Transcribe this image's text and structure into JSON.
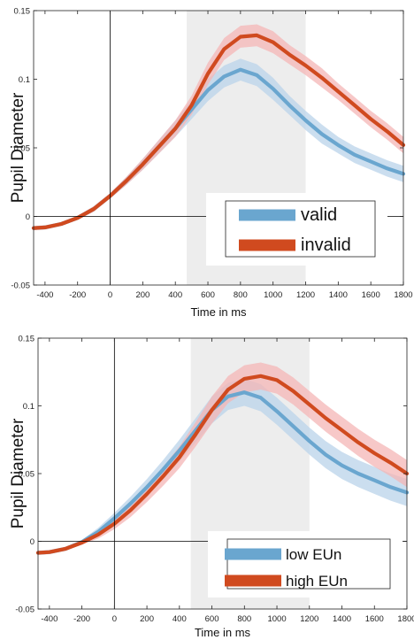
{
  "chart_data": [
    {
      "type": "line",
      "xlabel": "Time in ms",
      "ylabel": "Pupil Diameter",
      "xlim": [
        -470,
        1800
      ],
      "ylim": [
        -0.05,
        0.15
      ],
      "xticks": [
        "-400",
        "-200",
        "0",
        "200",
        "400",
        "600",
        "800",
        "1000",
        "1200",
        "1400",
        "1600",
        "1800"
      ],
      "yticks": [
        "-0.05",
        "0",
        "0.05",
        "0.1",
        "0.15"
      ],
      "highlight_window": [
        470,
        1200
      ],
      "legend_location": "bottom-right",
      "series": [
        {
          "name": "valid",
          "color": "#6aa6cf",
          "band_color": "#b9d3ea",
          "x": [
            -470,
            -400,
            -300,
            -200,
            -100,
            0,
            100,
            200,
            300,
            400,
            500,
            600,
            700,
            800,
            900,
            1000,
            1100,
            1200,
            1300,
            1400,
            1500,
            1600,
            1700,
            1800
          ],
          "y": [
            -0.0085,
            -0.008,
            -0.0055,
            -0.001,
            0.0055,
            0.015,
            0.026,
            0.038,
            0.051,
            0.064,
            0.078,
            0.092,
            0.102,
            0.107,
            0.103,
            0.093,
            0.081,
            0.07,
            0.06,
            0.052,
            0.045,
            0.04,
            0.035,
            0.031
          ],
          "ci": [
            0.0015,
            0.0015,
            0.0015,
            0.0015,
            0.002,
            0.002,
            0.003,
            0.004,
            0.005,
            0.006,
            0.007,
            0.008,
            0.008,
            0.008,
            0.008,
            0.008,
            0.007,
            0.007,
            0.007,
            0.006,
            0.006,
            0.006,
            0.006,
            0.006
          ]
        },
        {
          "name": "invalid",
          "color": "#d04a1f",
          "band_color": "#f4b6b6",
          "x": [
            -470,
            -400,
            -300,
            -200,
            -100,
            0,
            100,
            200,
            300,
            400,
            500,
            600,
            700,
            800,
            900,
            1000,
            1100,
            1200,
            1300,
            1400,
            1500,
            1600,
            1700,
            1800
          ],
          "y": [
            -0.0085,
            -0.008,
            -0.0055,
            -0.001,
            0.0055,
            0.015,
            0.026,
            0.038,
            0.051,
            0.064,
            0.081,
            0.104,
            0.122,
            0.131,
            0.132,
            0.127,
            0.118,
            0.11,
            0.101,
            0.091,
            0.081,
            0.071,
            0.062,
            0.052
          ],
          "ci": [
            0.0015,
            0.0015,
            0.0015,
            0.0015,
            0.002,
            0.002,
            0.003,
            0.004,
            0.005,
            0.006,
            0.007,
            0.008,
            0.008,
            0.008,
            0.008,
            0.008,
            0.007,
            0.007,
            0.007,
            0.006,
            0.006,
            0.006,
            0.006,
            0.006
          ]
        }
      ]
    },
    {
      "type": "line",
      "xlabel": "Time in ms",
      "ylabel": "Pupil Diameter",
      "xlim": [
        -470,
        1800
      ],
      "ylim": [
        -0.05,
        0.15
      ],
      "xticks": [
        "-400",
        "-200",
        "0",
        "200",
        "400",
        "600",
        "800",
        "1000",
        "1200",
        "1400",
        "1600",
        "1800"
      ],
      "yticks": [
        "-0.05",
        "0",
        "0.05",
        "0.1",
        "0.15"
      ],
      "highlight_window": [
        470,
        1200
      ],
      "legend_location": "bottom-right",
      "series": [
        {
          "name": "low EUn",
          "color": "#6aa6cf",
          "band_color": "#b9d3ea",
          "x": [
            -470,
            -400,
            -300,
            -200,
            -100,
            0,
            100,
            200,
            300,
            400,
            500,
            600,
            700,
            800,
            900,
            1000,
            1100,
            1200,
            1300,
            1400,
            1500,
            1600,
            1700,
            1800
          ],
          "y": [
            -0.0085,
            -0.008,
            -0.0055,
            -0.0005,
            0.007,
            0.017,
            0.028,
            0.04,
            0.053,
            0.067,
            0.082,
            0.097,
            0.107,
            0.11,
            0.106,
            0.096,
            0.085,
            0.074,
            0.064,
            0.056,
            0.05,
            0.045,
            0.04,
            0.036
          ],
          "ci": [
            0.0015,
            0.0015,
            0.0015,
            0.0015,
            0.003,
            0.004,
            0.005,
            0.006,
            0.007,
            0.008,
            0.009,
            0.01,
            0.01,
            0.01,
            0.01,
            0.01,
            0.01,
            0.01,
            0.01,
            0.01,
            0.01,
            0.01,
            0.01,
            0.01
          ]
        },
        {
          "name": "high EUn",
          "color": "#d04a1f",
          "band_color": "#f4b6b6",
          "x": [
            -470,
            -400,
            -300,
            -200,
            -100,
            0,
            100,
            200,
            300,
            400,
            500,
            600,
            700,
            800,
            900,
            1000,
            1100,
            1200,
            1300,
            1400,
            1500,
            1600,
            1700,
            1800
          ],
          "y": [
            -0.0085,
            -0.008,
            -0.0055,
            -0.001,
            0.005,
            0.013,
            0.023,
            0.035,
            0.048,
            0.062,
            0.079,
            0.097,
            0.112,
            0.12,
            0.122,
            0.119,
            0.111,
            0.101,
            0.091,
            0.082,
            0.073,
            0.065,
            0.058,
            0.05
          ],
          "ci": [
            0.0015,
            0.0015,
            0.0015,
            0.0015,
            0.003,
            0.004,
            0.005,
            0.006,
            0.007,
            0.008,
            0.009,
            0.01,
            0.01,
            0.01,
            0.01,
            0.01,
            0.01,
            0.01,
            0.01,
            0.01,
            0.01,
            0.01,
            0.01,
            0.01
          ]
        }
      ]
    }
  ]
}
